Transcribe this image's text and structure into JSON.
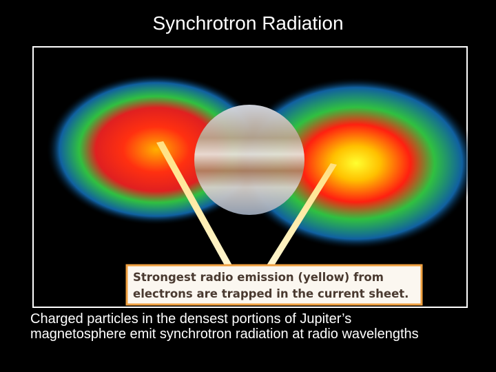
{
  "header": {
    "title": "Synchrotron Radiation"
  },
  "figure": {
    "callout": [
      "Strongest radio emission (yellow) from",
      "electrons are trapped in the current sheet."
    ]
  },
  "caption": "Charged particles in the densest portions of Jupiter’s magnetosphere emit synchrotron radiation at radio wavelengths"
}
